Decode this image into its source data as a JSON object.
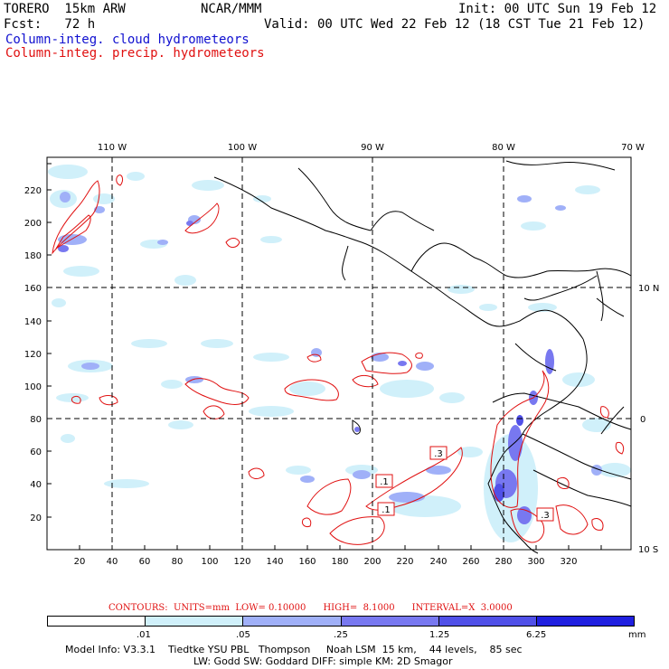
{
  "header": {
    "model": "TORERO  15km ARW",
    "org": "NCAR/MMM",
    "init": "Init: 00 UTC Sun 19 Feb 12",
    "fcst": "Fcst:   72 h",
    "valid": "Valid: 00 UTC Wed 22 Feb 12 (18 CST Tue 21 Feb 12)",
    "field_cloud": "Column-integ. cloud hydrometeors",
    "field_precip": "Column-integ. precip. hydrometeors"
  },
  "axes": {
    "top_lon_labels": [
      "110 W",
      "100 W",
      "90 W",
      "80 W",
      "70 W"
    ],
    "right_lat_labels": [
      "10 N",
      "0",
      "10 S"
    ],
    "left_y_ticks": [
      "20",
      "40",
      "60",
      "80",
      "100",
      "120",
      "140",
      "160",
      "180",
      "200",
      "220"
    ],
    "bottom_x_ticks": [
      "20",
      "40",
      "60",
      "80",
      "100",
      "120",
      "140",
      "160",
      "180",
      "200",
      "220",
      "240",
      "260",
      "280",
      "300",
      "320"
    ]
  },
  "contour_labels": [
    ".3",
    ".1",
    ".1",
    ".3"
  ],
  "contour_info": "CONTOURS:  UNITS=mm  LOW= 0.10000      HIGH=  8.1000      INTERVAL=X  3.0000",
  "colorbar": {
    "colors": [
      "#ffffff",
      "#d0f0fa",
      "#a0b0f8",
      "#7878f0",
      "#5050e8",
      "#2020e0"
    ],
    "labels": [
      ".01",
      ".05",
      ".25",
      "1.25",
      "6.25"
    ],
    "unit": "mm"
  },
  "footer": {
    "line1": "Model Info: V3.3.1    Tiedtke YSU PBL   Thompson     Noah LSM  15 km,    44 levels,    85 sec",
    "line2": "LW: Godd SW: Goddard DIFF: simple KM: 2D Smagor"
  },
  "colors": {
    "cloud_text": "#1010d0",
    "precip_contour": "#e01010"
  }
}
